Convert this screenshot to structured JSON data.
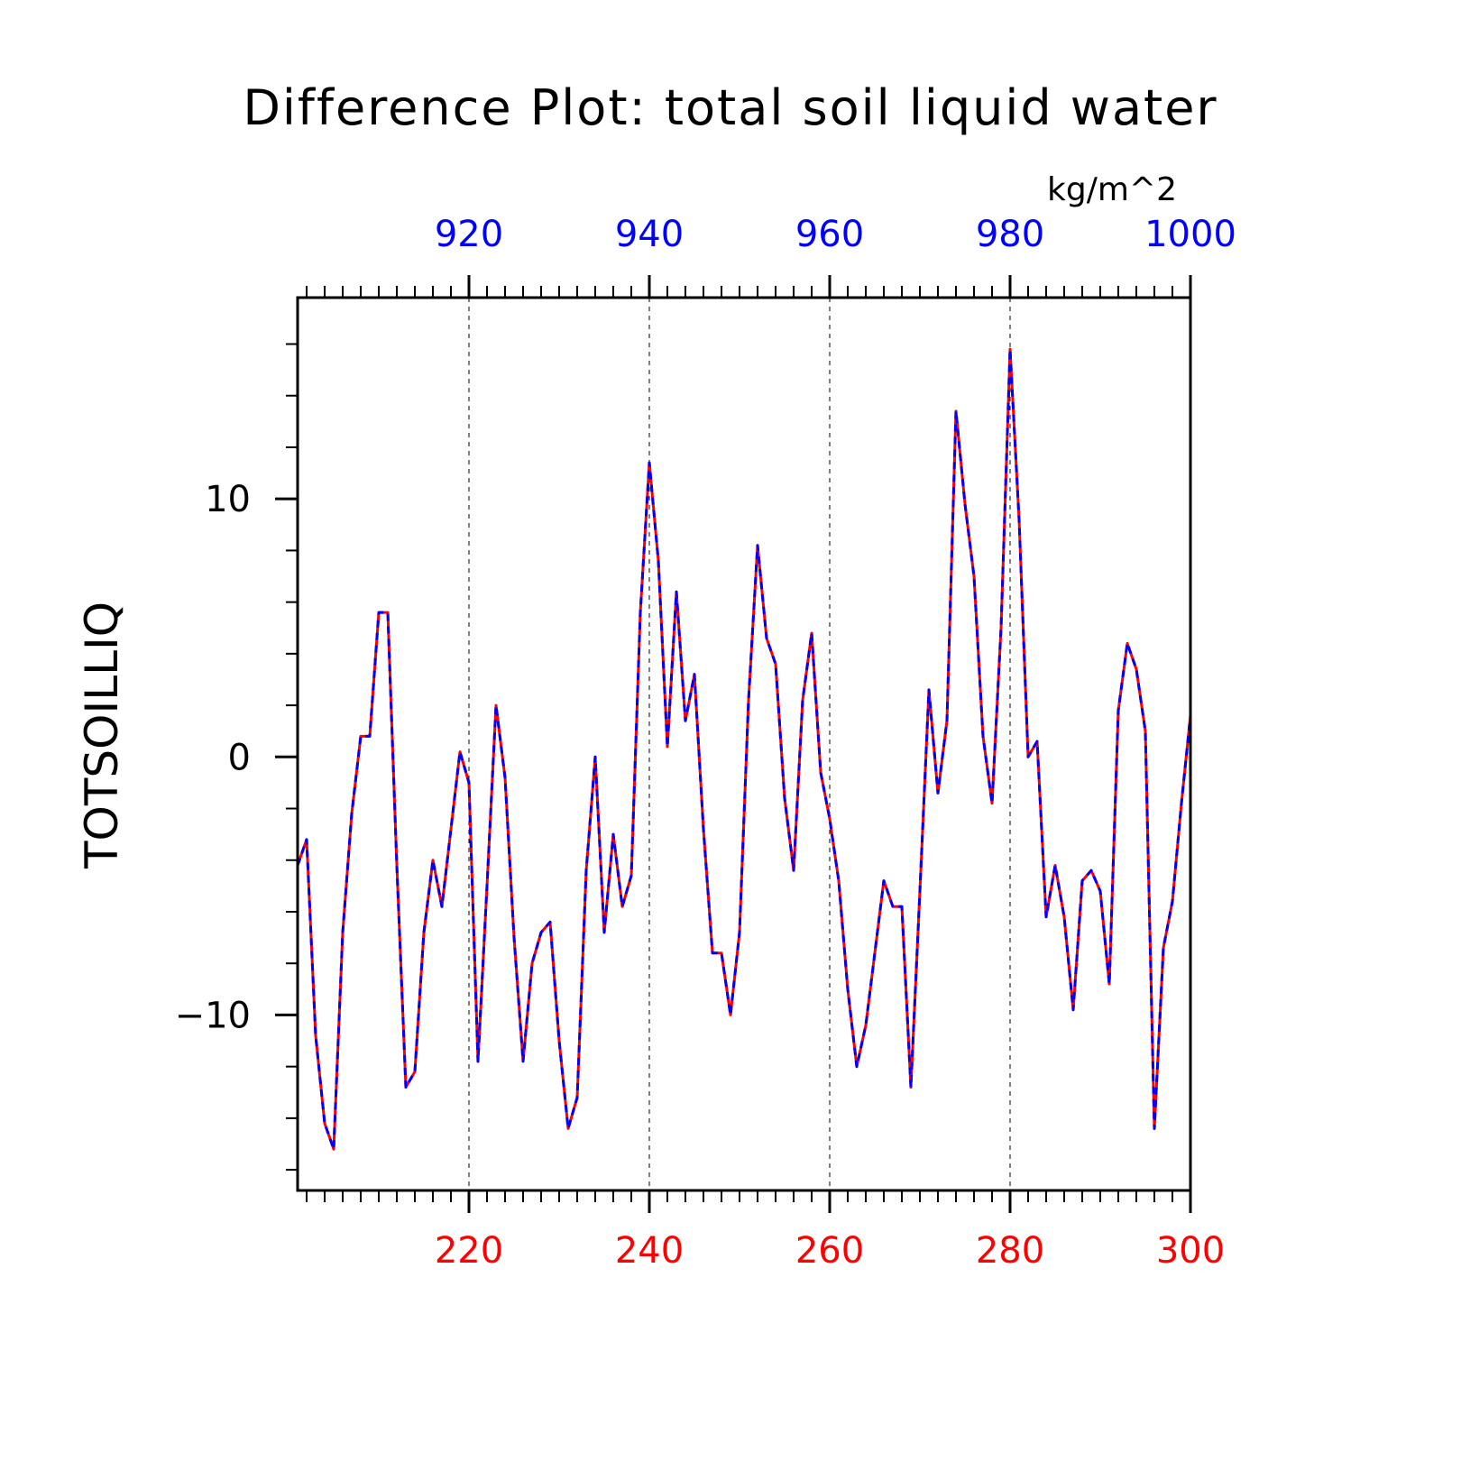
{
  "chart_data": {
    "type": "line",
    "title": "Difference Plot: total soil liquid water",
    "units": "kg/m^2",
    "ylabel": "TOTSOILLIQ",
    "xlim": [
      201,
      300
    ],
    "ylim": [
      -16.8,
      17.8
    ],
    "bottom_ticks": [
      220,
      240,
      260,
      280,
      300
    ],
    "top_ticks": [
      920,
      940,
      960,
      980,
      1000
    ],
    "top_offset": 700,
    "left_ticks": [
      10,
      0,
      -10
    ],
    "left_tick_labels": [
      "10",
      "0",
      "−10"
    ],
    "y_minor_step": 2,
    "x_minor_step": 2,
    "grid": "dashed vertical at major bottom ticks",
    "colors": {
      "series_a": "#ff0000",
      "series_b": "#0000ff",
      "top_ticks": "#0000ff",
      "bottom_ticks": "#ff0000"
    },
    "x": [
      201,
      202,
      203,
      204,
      205,
      206,
      207,
      208,
      209,
      210,
      211,
      212,
      213,
      214,
      215,
      216,
      217,
      218,
      219,
      220,
      221,
      222,
      223,
      224,
      225,
      226,
      227,
      228,
      229,
      230,
      231,
      232,
      233,
      234,
      235,
      236,
      237,
      238,
      239,
      240,
      241,
      242,
      243,
      244,
      245,
      246,
      247,
      248,
      249,
      250,
      251,
      252,
      253,
      254,
      255,
      256,
      257,
      258,
      259,
      260,
      261,
      262,
      263,
      264,
      265,
      266,
      267,
      268,
      269,
      270,
      271,
      272,
      273,
      274,
      275,
      276,
      277,
      278,
      279,
      280,
      281,
      282,
      283,
      284,
      285,
      286,
      287,
      288,
      289,
      290,
      291,
      292,
      293,
      294,
      295,
      296,
      297,
      298,
      299,
      300
    ],
    "series": [
      {
        "values": [
          -4.2,
          -3.2,
          -10.8,
          -14.2,
          -15.2,
          -6.8,
          -2.2,
          0.8,
          0.8,
          5.6,
          5.6,
          -4.2,
          -12.8,
          -12.2,
          -6.8,
          -4.0,
          -5.8,
          -2.8,
          0.2,
          -1.0,
          -11.8,
          -5.0,
          2.0,
          -0.8,
          -7.0,
          -11.8,
          -8.0,
          -6.8,
          -6.4,
          -11.0,
          -14.4,
          -13.2,
          -4.4,
          0.0,
          -6.8,
          -3.0,
          -5.8,
          -4.6,
          5.6,
          11.4,
          7.6,
          0.4,
          6.4,
          1.4,
          3.2,
          -2.8,
          -7.6,
          -7.6,
          -10.0,
          -6.8,
          2.2,
          8.2,
          4.6,
          3.6,
          -1.6,
          -4.4,
          2.2,
          4.8,
          -0.6,
          -2.4,
          -4.8,
          -9.0,
          -12.0,
          -10.4,
          -7.6,
          -4.8,
          -5.8,
          -5.8,
          -12.8,
          -5.2,
          2.6,
          -1.4,
          1.4,
          13.4,
          9.8,
          7.0,
          0.8,
          -1.8,
          5.0,
          15.8,
          9.2,
          0.0,
          0.6,
          -6.2,
          -4.2,
          -6.2,
          -9.8,
          -4.8,
          -4.4,
          -5.2,
          -8.8,
          1.8,
          4.4,
          3.4,
          1.0,
          -14.4,
          -7.4,
          -5.6,
          -1.8,
          1.6
        ]
      },
      {
        "values": [
          -4.2,
          -3.2,
          -10.8,
          -14.2,
          -15.2,
          -6.8,
          -2.2,
          0.8,
          0.8,
          5.6,
          5.6,
          -4.2,
          -12.8,
          -12.2,
          -6.8,
          -4.0,
          -5.8,
          -2.8,
          0.2,
          -1.0,
          -11.8,
          -5.0,
          2.0,
          -0.8,
          -7.0,
          -11.8,
          -8.0,
          -6.8,
          -6.4,
          -11.0,
          -14.4,
          -13.2,
          -4.4,
          0.0,
          -6.8,
          -3.0,
          -5.8,
          -4.6,
          5.6,
          11.4,
          7.6,
          0.4,
          6.4,
          1.4,
          3.2,
          -2.8,
          -7.6,
          -7.6,
          -10.0,
          -6.8,
          2.2,
          8.2,
          4.6,
          3.6,
          -1.6,
          -4.4,
          2.2,
          4.8,
          -0.6,
          -2.4,
          -4.8,
          -9.0,
          -12.0,
          -10.4,
          -7.6,
          -4.8,
          -5.8,
          -5.8,
          -12.8,
          -5.2,
          2.6,
          -1.4,
          1.4,
          13.4,
          9.8,
          7.0,
          0.8,
          -1.8,
          5.0,
          15.8,
          9.2,
          0.0,
          0.6,
          -6.2,
          -4.2,
          -6.2,
          -9.8,
          -4.8,
          -4.4,
          -5.2,
          -8.8,
          1.8,
          4.4,
          3.4,
          1.0,
          -14.4,
          -7.4,
          -5.6,
          -1.8,
          1.6
        ]
      }
    ]
  }
}
